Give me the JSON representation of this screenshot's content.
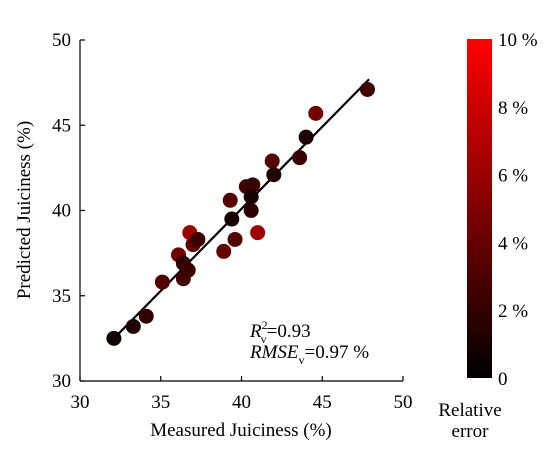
{
  "chart_data": {
    "type": "scatter",
    "xlabel": "Measured Juiciness (%)",
    "ylabel": "Predicted Juiciness (%)",
    "xlim": [
      30,
      50
    ],
    "ylim": [
      30,
      50
    ],
    "xticks": [
      "30",
      "35",
      "40",
      "45",
      "50"
    ],
    "yticks": [
      "30",
      "35",
      "40",
      "45",
      "50"
    ],
    "grid": false,
    "fit_line": {
      "x": [
        32,
        47.9
      ],
      "y": [
        32.4,
        47.7
      ]
    },
    "points": [
      {
        "x": 32.1,
        "y": 32.5,
        "error": 0.5
      },
      {
        "x": 33.3,
        "y": 33.2,
        "error": 1.2
      },
      {
        "x": 34.1,
        "y": 33.8,
        "error": 2.0
      },
      {
        "x": 35.1,
        "y": 35.8,
        "error": 3.2
      },
      {
        "x": 36.1,
        "y": 37.4,
        "error": 4.4
      },
      {
        "x": 36.4,
        "y": 36.0,
        "error": 2.8
      },
      {
        "x": 36.4,
        "y": 36.9,
        "error": 1.8
      },
      {
        "x": 36.7,
        "y": 36.5,
        "error": 2.3
      },
      {
        "x": 36.8,
        "y": 38.7,
        "error": 6.0
      },
      {
        "x": 37.0,
        "y": 38.0,
        "error": 3.6
      },
      {
        "x": 37.3,
        "y": 38.3,
        "error": 2.4
      },
      {
        "x": 38.9,
        "y": 37.6,
        "error": 3.9
      },
      {
        "x": 39.4,
        "y": 39.5,
        "error": 0.9
      },
      {
        "x": 39.3,
        "y": 40.6,
        "error": 3.4
      },
      {
        "x": 39.6,
        "y": 38.3,
        "error": 3.2
      },
      {
        "x": 40.3,
        "y": 41.4,
        "error": 2.6
      },
      {
        "x": 40.6,
        "y": 40.0,
        "error": 1.8
      },
      {
        "x": 40.7,
        "y": 41.5,
        "error": 2.2
      },
      {
        "x": 41.0,
        "y": 38.7,
        "error": 6.2
      },
      {
        "x": 40.6,
        "y": 40.8,
        "error": 1.0
      },
      {
        "x": 41.9,
        "y": 42.9,
        "error": 3.4
      },
      {
        "x": 42.0,
        "y": 42.1,
        "error": 1.3
      },
      {
        "x": 43.6,
        "y": 43.1,
        "error": 2.2
      },
      {
        "x": 44.0,
        "y": 44.3,
        "error": 1.0
      },
      {
        "x": 44.6,
        "y": 45.7,
        "error": 4.6
      },
      {
        "x": 47.8,
        "y": 47.1,
        "error": 2.6
      }
    ],
    "colorbar": {
      "label": "Relative error",
      "label_lines": [
        "Relative",
        "error"
      ],
      "range": [
        0,
        10
      ],
      "ticks": [
        "0",
        "2 %",
        "4 %",
        "6 %",
        "8 %",
        "10 %"
      ],
      "color_min": "#000000",
      "color_max": "#ff0000"
    },
    "annotation": {
      "r2_symbol": "R",
      "r2_sup": "2",
      "r2_sub": "v",
      "r2_value": "=0.93",
      "rmse_symbol": "RMSE",
      "rmse_sub": "v",
      "rmse_value": "=0.97 %"
    }
  }
}
